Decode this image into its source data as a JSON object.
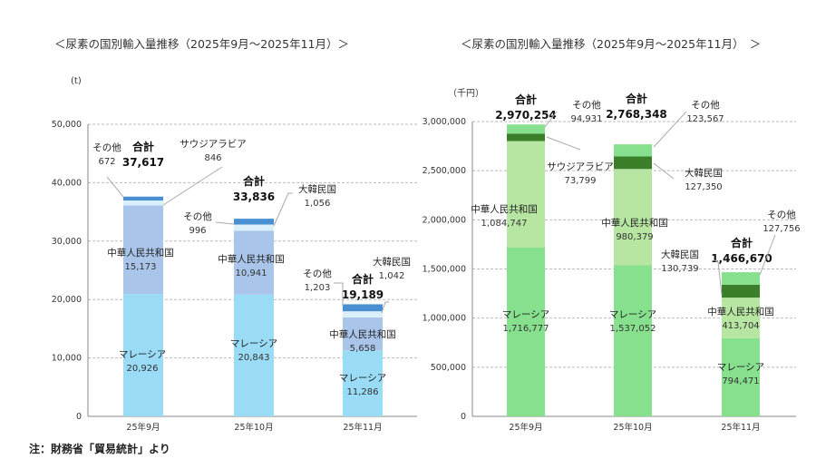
{
  "note": "注：財務省「貿易統計」より",
  "total_label": "合計",
  "chart_data": [
    {
      "type": "bar",
      "stacked": true,
      "title": "＜尿素の国別輸入量推移（2025年9月〜2025年11月）＞",
      "unit": "(t)",
      "categories": [
        "25年9月",
        "25年10月",
        "25年11月"
      ],
      "ylim": [
        0,
        50000
      ],
      "yticks": [
        0,
        10000,
        20000,
        30000,
        40000,
        50000
      ],
      "grid": true,
      "series": [
        {
          "name": "マレーシア",
          "values": [
            20926,
            20843,
            11286
          ],
          "color": "#9adcf6"
        },
        {
          "name": "中華人民共和国",
          "values": [
            15173,
            10941,
            5658
          ],
          "color": "#a9c5ea"
        },
        {
          "name": "サウジアラビア",
          "values": [
            846,
            null,
            null
          ],
          "color": "#dcf0fb"
        },
        {
          "name": "大韓民国",
          "values": [
            null,
            1056,
            1042
          ],
          "color": "#dcf0fb"
        },
        {
          "name": "その他",
          "values": [
            672,
            996,
            1203
          ],
          "color": "#4a8fd2"
        }
      ],
      "totals": [
        37617,
        33836,
        19189
      ]
    },
    {
      "type": "bar",
      "stacked": true,
      "title": "＜尿素の国別輸入量推移（2025年9月〜2025年11月）　＞",
      "unit": "（千円）",
      "categories": [
        "25年9月",
        "25年10月",
        "25年11月"
      ],
      "ylim": [
        0,
        3000000
      ],
      "yticks": [
        0,
        500000,
        1000000,
        1500000,
        2000000,
        2500000,
        3000000
      ],
      "grid": true,
      "series": [
        {
          "name": "マレーシア",
          "values": [
            1716777,
            1537052,
            794471
          ],
          "color": "#86e08e"
        },
        {
          "name": "中華人民共和国",
          "values": [
            1084747,
            980379,
            413704
          ],
          "color": "#b6e6a2"
        },
        {
          "name": "サウジアラビア",
          "values": [
            73799,
            null,
            null
          ],
          "color": "#3b7f2b"
        },
        {
          "name": "大韓民国",
          "values": [
            null,
            127350,
            130739
          ],
          "color": "#3b7f2b"
        },
        {
          "name": "その他",
          "values": [
            94931,
            123567,
            127756
          ],
          "color": "#86e08e"
        }
      ],
      "totals": [
        2970254,
        2768348,
        1466670
      ]
    }
  ]
}
